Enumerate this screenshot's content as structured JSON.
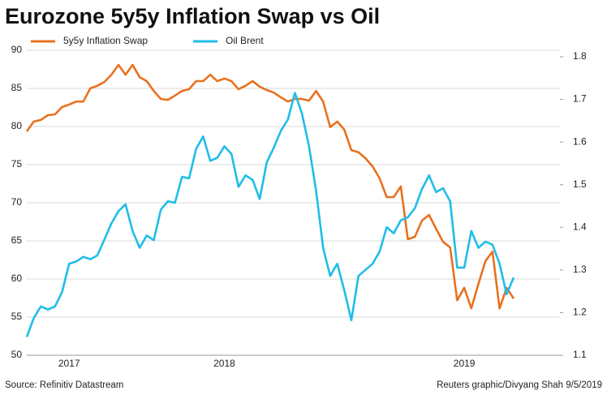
{
  "chart_data": {
    "type": "line",
    "title": "Eurozone 5y5y Inflation Swap vs Oil",
    "source": "Source: Refinitiv Datastream",
    "credit": "Reuters graphic/Divyang Shah 9/5/2019",
    "categories": [
      null,
      null,
      null,
      null,
      null,
      null,
      "2017",
      null,
      null,
      null,
      null,
      null,
      null,
      null,
      null,
      null,
      null,
      null,
      null,
      null,
      null,
      null,
      null,
      null,
      null,
      null,
      null,
      null,
      "2018",
      null,
      null,
      null,
      null,
      null,
      null,
      null,
      null,
      null,
      null,
      null,
      null,
      null,
      null,
      null,
      null,
      null,
      null,
      null,
      null,
      null,
      null,
      null,
      null,
      null,
      null,
      null,
      null,
      null,
      null,
      null,
      null,
      null,
      "2019",
      null,
      null,
      null,
      null,
      null,
      null,
      null
    ],
    "series": [
      {
        "name": "5y5y Inflation Swap",
        "color": "#e8711f",
        "axis": "y2",
        "values": [
          1.625,
          1.648,
          1.652,
          1.663,
          1.665,
          1.682,
          1.688,
          1.695,
          1.695,
          1.726,
          1.732,
          1.741,
          1.758,
          1.781,
          1.758,
          1.781,
          1.752,
          1.743,
          1.72,
          1.701,
          1.699,
          1.709,
          1.72,
          1.724,
          1.743,
          1.743,
          1.758,
          1.743,
          1.749,
          1.743,
          1.724,
          1.732,
          1.743,
          1.73,
          1.722,
          1.716,
          1.705,
          1.695,
          1.701,
          1.701,
          1.697,
          1.72,
          1.695,
          1.635,
          1.648,
          1.629,
          1.581,
          1.576,
          1.562,
          1.543,
          1.515,
          1.471,
          1.471,
          1.496,
          1.372,
          1.378,
          1.416,
          1.429,
          1.397,
          1.366,
          1.353,
          1.229,
          1.258,
          1.21,
          1.267,
          1.321,
          1.343,
          1.21,
          1.258,
          1.233
        ]
      },
      {
        "name": "Oil Brent",
        "color": "#1fbde8",
        "values": [
          52.4,
          54.9,
          56.4,
          56.0,
          56.4,
          58.3,
          62.0,
          62.3,
          62.9,
          62.6,
          63.1,
          65.2,
          67.3,
          68.9,
          69.8,
          66.3,
          64.1,
          65.7,
          65.1,
          69.1,
          70.2,
          70.0,
          73.4,
          73.2,
          77.1,
          78.7,
          75.5,
          75.9,
          77.4,
          76.4,
          72.1,
          73.6,
          73.0,
          70.5,
          75.3,
          77.2,
          79.4,
          80.9,
          84.4,
          81.7,
          77.4,
          71.6,
          64.1,
          60.4,
          62.0,
          58.5,
          54.6,
          60.4,
          61.2,
          62.0,
          63.6,
          66.8,
          66.0,
          67.7,
          68.1,
          69.3,
          71.8,
          73.6,
          71.4,
          71.9,
          70.2,
          61.5,
          61.5,
          66.3,
          64.1,
          64.9,
          64.5,
          62.0,
          58.0,
          60.2
        ]
      }
    ],
    "ylim": [
      50,
      90
    ],
    "yticks": [
      50,
      55,
      60,
      65,
      70,
      75,
      80,
      85,
      90
    ],
    "y2lim": [
      1.1,
      1.8
    ],
    "y2ticks": [
      1.1,
      1.2,
      1.3,
      1.4,
      1.5,
      1.6,
      1.7,
      1.8
    ],
    "grid": true
  }
}
